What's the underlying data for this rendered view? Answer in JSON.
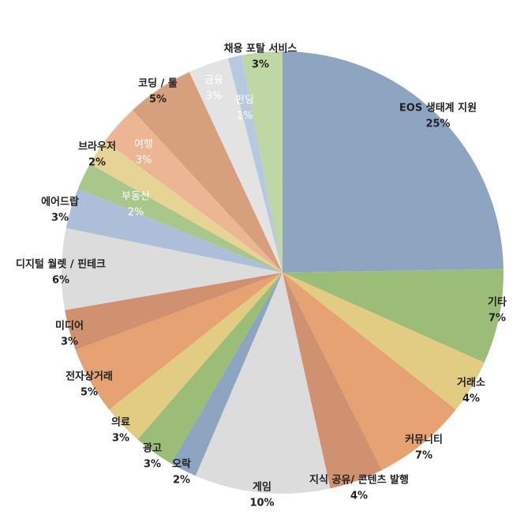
{
  "chart_data": {
    "type": "pie",
    "categories": [
      "EOS 생태계 지원",
      "기타",
      "거래소",
      "커뮤니티",
      "지식 공유/ 콘텐츠 발행",
      "게임",
      "오락",
      "광고",
      "의료",
      "전자상거래",
      "미디어",
      "디지털 월렛 / 핀테크",
      "에어드랍",
      "부동산",
      "브라우저",
      "여행",
      "코딩 / 툴",
      "금융",
      "펀딩",
      "채용 포탈 서비스"
    ],
    "values": [
      25,
      7,
      4,
      7,
      4,
      10,
      2,
      3,
      3,
      5,
      3,
      6,
      3,
      2,
      2,
      3,
      5,
      3,
      1,
      3
    ],
    "value_labels": [
      "25%",
      "7%",
      "4%",
      "7%",
      "4%",
      "10%",
      "2%",
      "3%",
      "3%",
      "5%",
      "3%",
      "6%",
      "3%",
      "2%",
      "2%",
      "3%",
      "5%",
      "3%",
      "1%",
      "3%"
    ],
    "colors": [
      "#8ea5c2",
      "#9bbd78",
      "#e2cc82",
      "#e6a273",
      "#d09170",
      "#dcdcdc",
      "#8ea5c2",
      "#9bbd78",
      "#e2cc82",
      "#e6a273",
      "#d09170",
      "#dcdcdc",
      "#adbfd8",
      "#a9c78a",
      "#e6d497",
      "#ecb594",
      "#d7a07c",
      "#e3e3e3",
      "#b8c8de",
      "#bfd6a5"
    ]
  }
}
